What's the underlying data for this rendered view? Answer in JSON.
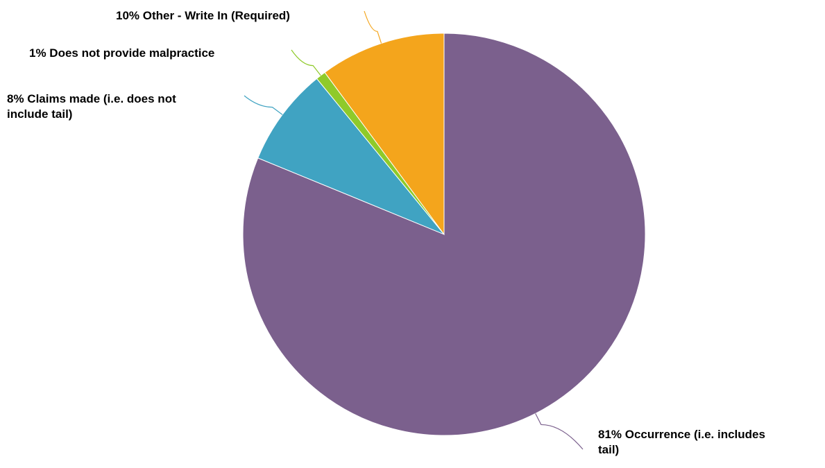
{
  "chart_data": {
    "type": "pie",
    "title": "",
    "start": "top",
    "direction": "clockwise",
    "slices": [
      {
        "label": "Occurrence (i.e. includes tail)",
        "percent_label": "81%",
        "value": 81.2,
        "color": "#7b608d"
      },
      {
        "label": "Claims made (i.e. does not include tail)",
        "percent_label": "8%",
        "value": 7.9,
        "color": "#40a3c2"
      },
      {
        "label": "Does not provide malpractice",
        "percent_label": "1%",
        "value": 0.8,
        "color": "#8fca2a"
      },
      {
        "label": "Other - Write In (Required)",
        "percent_label": "10%",
        "value": 10.1,
        "color": "#f4a51c"
      }
    ],
    "label_text": [
      [
        "81% Occurrence (i.e. includes",
        "tail)"
      ],
      [
        "8% Claims made (i.e. does not",
        "include tail)"
      ],
      [
        "1% Does not provide malpractice"
      ],
      [
        "10% Other - Write In (Required)"
      ]
    ]
  }
}
